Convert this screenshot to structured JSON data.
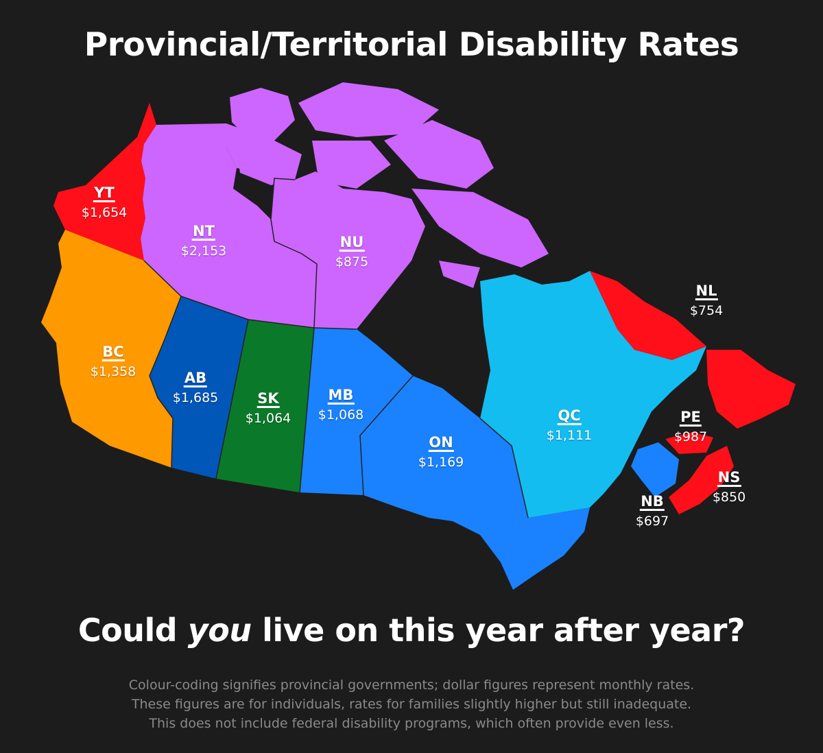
{
  "title": "Provincial/Territorial Disability Rates",
  "regions": [
    {
      "code": "YT",
      "rate": "$1,654",
      "color": "#ff0f1a"
    },
    {
      "code": "NT",
      "rate": "$2,153",
      "color": "#cc66ff"
    },
    {
      "code": "NU",
      "rate": "$875",
      "color": "#cc66ff"
    },
    {
      "code": "BC",
      "rate": "$1,358",
      "color": "#ff9900"
    },
    {
      "code": "AB",
      "rate": "$1,685",
      "color": "#0057b8"
    },
    {
      "code": "SK",
      "rate": "$1,064",
      "color": "#0a7a2a"
    },
    {
      "code": "MB",
      "rate": "$1,068",
      "color": "#1a82ff"
    },
    {
      "code": "ON",
      "rate": "$1,169",
      "color": "#1a82ff"
    },
    {
      "code": "QC",
      "rate": "$1,111",
      "color": "#14bdf0"
    },
    {
      "code": "NL",
      "rate": "$754",
      "color": "#ff0f1a"
    },
    {
      "code": "PE",
      "rate": "$987",
      "color": "#ff0f1a"
    },
    {
      "code": "NS",
      "rate": "$850",
      "color": "#ff0f1a"
    },
    {
      "code": "NB",
      "rate": "$697",
      "color": "#1a82ff"
    }
  ],
  "tagline": {
    "before": "Could ",
    "emph": "you",
    "after": " live on this year after year?"
  },
  "footnote": [
    "Colour-coding signifies provincial governments; dollar figures represent monthly rates.",
    "These figures are for individuals, rates for families slightly higher but still inadequate.",
    "This does not include federal disability programs, which often provide even less."
  ]
}
